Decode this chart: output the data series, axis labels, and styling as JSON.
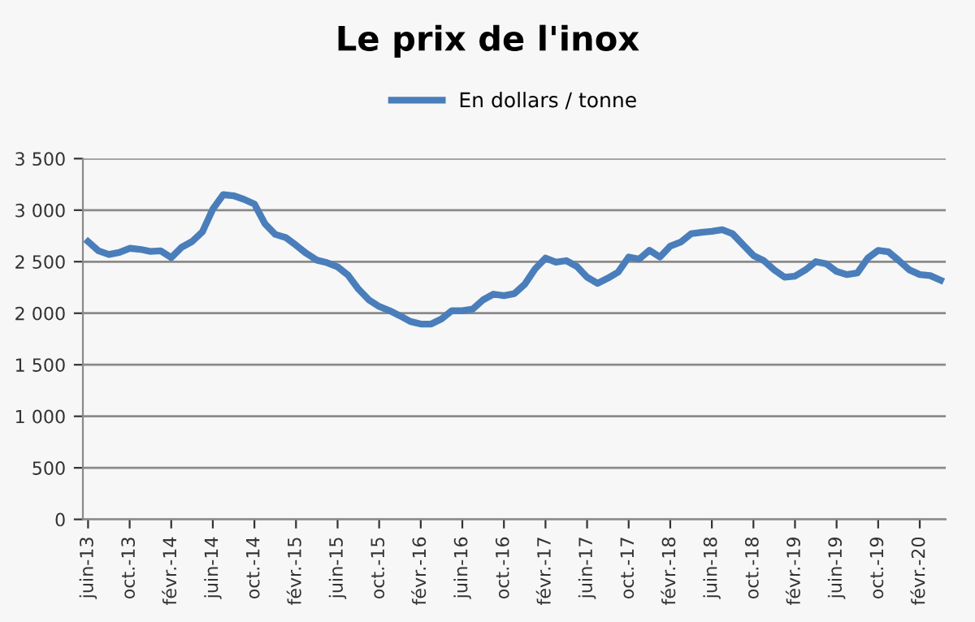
{
  "chart_data": {
    "type": "line",
    "title": "Le prix de l'inox",
    "categories": [
      "juin-13",
      null,
      null,
      null,
      "oct.-13",
      null,
      null,
      null,
      "févr.-14",
      null,
      null,
      null,
      "juin-14",
      null,
      null,
      null,
      "oct.-14",
      null,
      null,
      null,
      "févr.-15",
      null,
      null,
      null,
      "juin-15",
      null,
      null,
      null,
      "oct.-15",
      null,
      null,
      null,
      "févr.-16",
      null,
      null,
      null,
      "juin-16",
      null,
      null,
      null,
      "oct.-16",
      null,
      null,
      null,
      "févr.-17",
      null,
      null,
      null,
      "juin-17",
      null,
      null,
      null,
      "oct.-17",
      null,
      null,
      null,
      "févr.-18",
      null,
      null,
      null,
      "juin-18",
      null,
      null,
      null,
      "oct.-18",
      null,
      null,
      null,
      "févr.-19",
      null,
      null,
      null,
      "juin-19",
      null,
      null,
      null,
      "oct.-19",
      null,
      null,
      null,
      "févr.-20",
      null,
      null
    ],
    "series": [
      {
        "name": "En dollars / tonne",
        "color": "#4a7ebb",
        "values": [
          2695,
          2605,
          2570,
          2590,
          2630,
          2620,
          2600,
          2605,
          2540,
          2640,
          2695,
          2790,
          3010,
          3150,
          3140,
          3105,
          3060,
          2870,
          2765,
          2735,
          2660,
          2580,
          2515,
          2490,
          2450,
          2370,
          2235,
          2130,
          2065,
          2025,
          1975,
          1920,
          1895,
          1895,
          1945,
          2025,
          2025,
          2040,
          2130,
          2185,
          2170,
          2190,
          2280,
          2430,
          2535,
          2495,
          2510,
          2455,
          2350,
          2290,
          2340,
          2400,
          2545,
          2525,
          2610,
          2545,
          2650,
          2690,
          2770,
          2785,
          2795,
          2810,
          2770,
          2665,
          2560,
          2510,
          2420,
          2350,
          2360,
          2420,
          2500,
          2480,
          2405,
          2375,
          2390,
          2535,
          2610,
          2595,
          2510,
          2420,
          2375,
          2365,
          2320
        ]
      }
    ],
    "ylim": [
      0,
      3500
    ],
    "yticks": [
      0,
      500,
      {
        "value": 1000,
        "label": "1 000"
      },
      {
        "value": 1500,
        "label": "1 500"
      },
      {
        "value": 2000,
        "label": "2 000"
      },
      {
        "value": 2500,
        "label": "2 500"
      },
      {
        "value": 3000,
        "label": "3 000"
      },
      {
        "value": 3500,
        "label": "3 500"
      }
    ],
    "grid": "y",
    "legend": "top",
    "marker": "none",
    "line_style": "solid"
  }
}
